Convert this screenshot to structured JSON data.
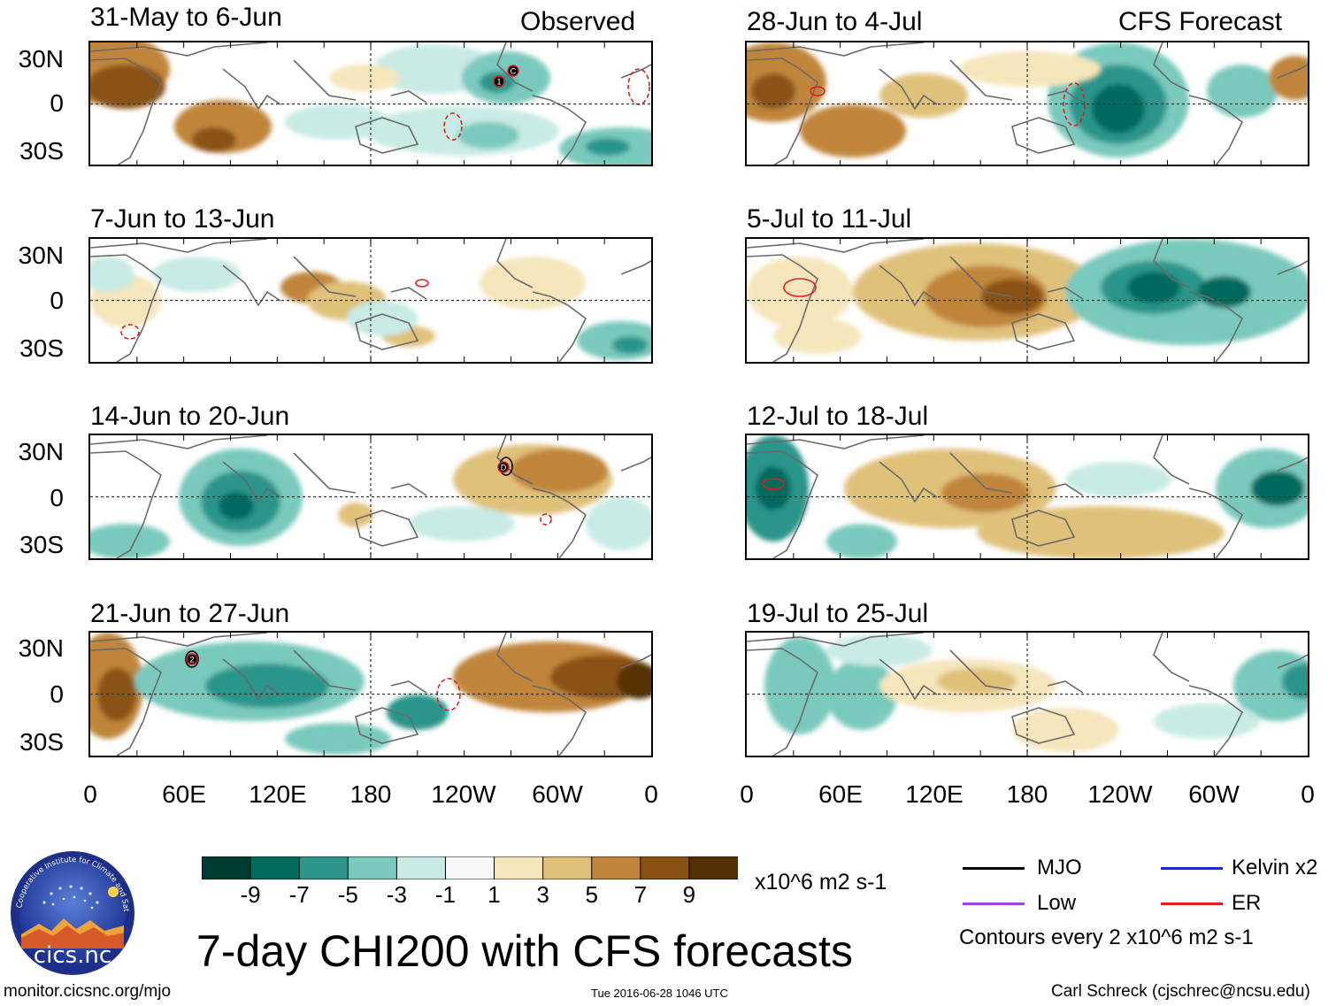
{
  "headers": {
    "left": "Observed",
    "right": "CFS Forecast"
  },
  "lat_labels": [
    "30N",
    "0",
    "30S"
  ],
  "lon_labels": [
    "0",
    "60E",
    "120E",
    "180",
    "120W",
    "60W",
    "0"
  ],
  "panels": [
    {
      "title": "31-May to 6-Jun"
    },
    {
      "title": "7-Jun to 13-Jun"
    },
    {
      "title": "14-Jun to 20-Jun"
    },
    {
      "title": "21-Jun to 27-Jun"
    },
    {
      "title": "28-Jun to 4-Jul"
    },
    {
      "title": "5-Jul to 11-Jul"
    },
    {
      "title": "12-Jul to 18-Jul"
    },
    {
      "title": "19-Jul to 25-Jul"
    }
  ],
  "colorbar": {
    "colors": [
      "#013c33",
      "#036b5e",
      "#2c958a",
      "#79c9bd",
      "#c8ebe4",
      "#f7f7f7",
      "#f5e5bb",
      "#dfc17a",
      "#c0853a",
      "#8a5212",
      "#543105"
    ],
    "labels": [
      "-9",
      "-7",
      "-5",
      "-3",
      "-1",
      "1",
      "3",
      "5",
      "7",
      "9"
    ],
    "units": "x10^6 m2 s-1"
  },
  "legend": {
    "items": [
      {
        "label": "MJO",
        "color": "#000000"
      },
      {
        "label": "Kelvin x2",
        "color": "#1a2bd6"
      },
      {
        "label": "Low",
        "color": "#9b44e0"
      },
      {
        "label": "ER",
        "color": "#dd1f1f"
      }
    ],
    "contour_note": "Contours every 2 x10^6 m2 s-1"
  },
  "logo": {
    "text": "cics.nc",
    "ring_text": "Cooperative Institute for Climate and Satellites"
  },
  "title": "7-day CHI200 with CFS forecasts",
  "footer": {
    "left": "monitor.cicsnc.org/mjo",
    "center": "Tue 2016-06-28 1046 UTC",
    "right": "Carl Schreck (cjschrec@ncsu.edu)"
  },
  "panel_markers": [
    {
      "panel": 0,
      "labels": [
        "1",
        "C"
      ]
    },
    {
      "panel": 2,
      "labels": [
        "D"
      ]
    },
    {
      "panel": 3,
      "labels": [
        "2"
      ]
    }
  ]
}
